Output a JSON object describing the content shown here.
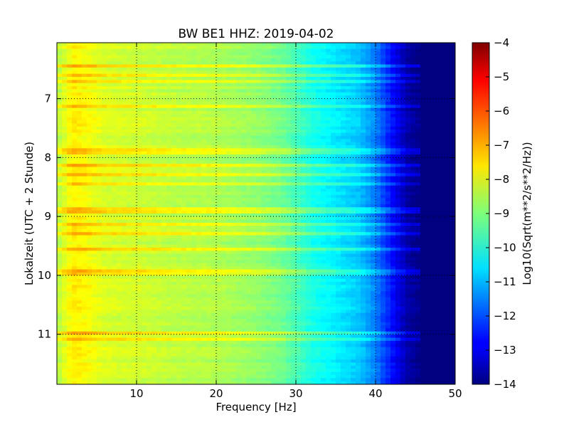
{
  "chart_data": {
    "type": "heatmap",
    "title": "BW BE1 HHZ: 2019-04-02",
    "xlabel": "Frequency [Hz]",
    "ylabel": "Lokalzeit (UTC + 2 Stunde)",
    "xlim": [
      0,
      50
    ],
    "ylim_top_to_bottom": [
      6.05,
      11.85
    ],
    "x_ticks": [
      10,
      20,
      30,
      40,
      50
    ],
    "x_tick_labels": [
      "10",
      "20",
      "30",
      "40",
      "50"
    ],
    "y_ticks": [
      7,
      8,
      9,
      10,
      11
    ],
    "y_tick_labels": [
      "7",
      "8",
      "9",
      "10",
      "11"
    ],
    "grid": true,
    "colormap": "jet",
    "colorbar": {
      "label": "Log10(Sqrt(m**2/s**2/Hz))",
      "range": [
        -14,
        -4
      ],
      "ticks": [
        -4,
        -5,
        -6,
        -7,
        -8,
        -9,
        -10,
        -11,
        -12,
        -13,
        -14
      ],
      "tick_labels": [
        "−4",
        "−5",
        "−6",
        "−7",
        "−8",
        "−9",
        "−10",
        "−11",
        "−12",
        "−13",
        "−14"
      ]
    },
    "spectral_profile": {
      "frequency_hz": [
        0,
        2,
        4,
        6,
        10,
        15,
        20,
        25,
        28,
        30,
        32,
        35,
        38,
        40,
        42,
        44,
        46,
        48,
        50
      ],
      "log10_amplitude": [
        -8.5,
        -7.6,
        -7.8,
        -8.1,
        -8.2,
        -8.4,
        -8.5,
        -8.8,
        -9.1,
        -9.5,
        -10.0,
        -10.4,
        -10.8,
        -11.5,
        -12.6,
        -13.6,
        -14,
        -14,
        -14
      ]
    },
    "high_energy_times": [
      6.45,
      6.6,
      6.7,
      7.15,
      7.9,
      8.15,
      8.3,
      8.45,
      8.9,
      9.15,
      9.3,
      9.55,
      9.95,
      11.0,
      11.1
    ]
  }
}
